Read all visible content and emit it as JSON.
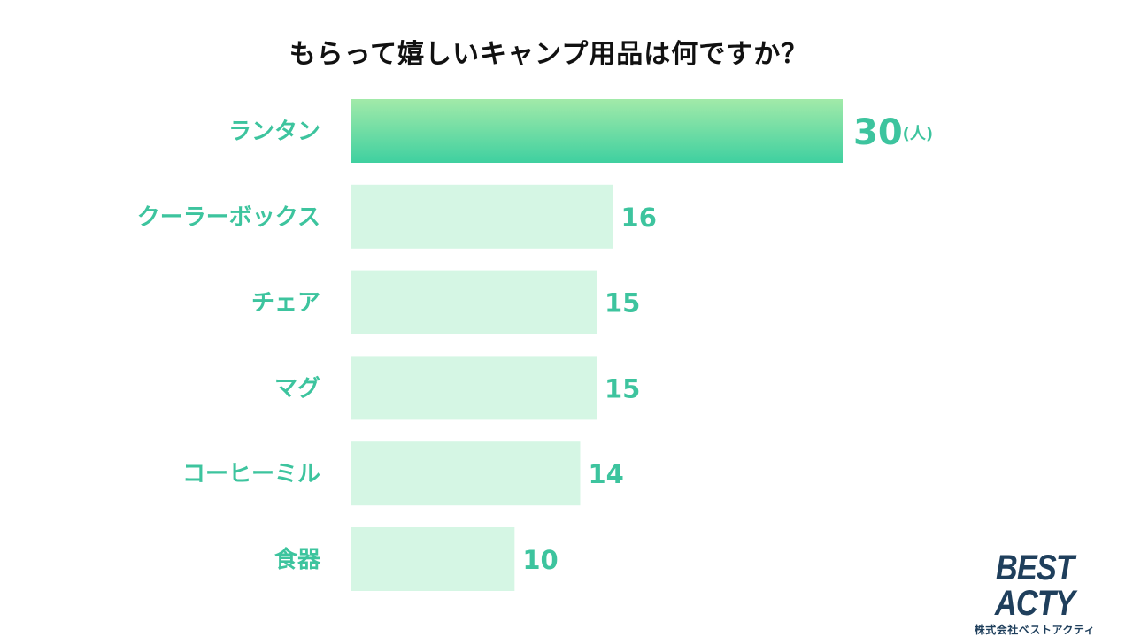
{
  "chart_data": {
    "type": "bar",
    "orientation": "horizontal",
    "title": "もらって嬉しいキャンプ用品は何ですか？",
    "categories": [
      "ランタン",
      "クーラーボックス",
      "チェア",
      "マグ",
      "コーヒーミル",
      "食器"
    ],
    "values": [
      30,
      16,
      15,
      15,
      14,
      10
    ],
    "unit": "(人)",
    "highlight_index": 0,
    "colors": {
      "highlight_top": "#a2eaa9",
      "highlight_bottom": "#3fd0a0",
      "bar": "#d5f6e4",
      "label": "#3dc49e",
      "value": "#3dc49e"
    },
    "grid": false,
    "legend": "none"
  },
  "logo": {
    "name": "BEST ACTY",
    "company": "株式会社ベストアクティ"
  }
}
